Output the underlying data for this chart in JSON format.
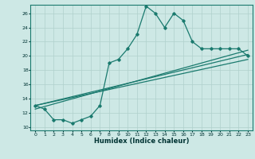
{
  "xlabel": "Humidex (Indice chaleur)",
  "ylabel": "",
  "bg_color": "#cde8e5",
  "line_color": "#1a7a6e",
  "grid_color": "#b0d0cc",
  "xlim": [
    -0.5,
    23.5
  ],
  "ylim": [
    9.5,
    27.2
  ],
  "xticks": [
    0,
    1,
    2,
    3,
    4,
    5,
    6,
    7,
    8,
    9,
    10,
    11,
    12,
    13,
    14,
    15,
    16,
    17,
    18,
    19,
    20,
    21,
    22,
    23
  ],
  "yticks": [
    10,
    12,
    14,
    16,
    18,
    20,
    22,
    24,
    26
  ],
  "line1_x": [
    0,
    1,
    2,
    3,
    4,
    5,
    6,
    7,
    8,
    9,
    10,
    11,
    12,
    13,
    14,
    15,
    16,
    17,
    18,
    19,
    20,
    21,
    22,
    23
  ],
  "line1_y": [
    13,
    12.5,
    11,
    11,
    10.5,
    11,
    11.5,
    13,
    19,
    19.5,
    21,
    23,
    27,
    26,
    24,
    26,
    25,
    22,
    21,
    21,
    21,
    21,
    21,
    20
  ],
  "line2_x": [
    0,
    23
  ],
  "line2_y": [
    13,
    20.2
  ],
  "line3_x": [
    0,
    23
  ],
  "line3_y": [
    13,
    19.5
  ],
  "line4_x": [
    0,
    23
  ],
  "line4_y": [
    12.5,
    20.8
  ]
}
